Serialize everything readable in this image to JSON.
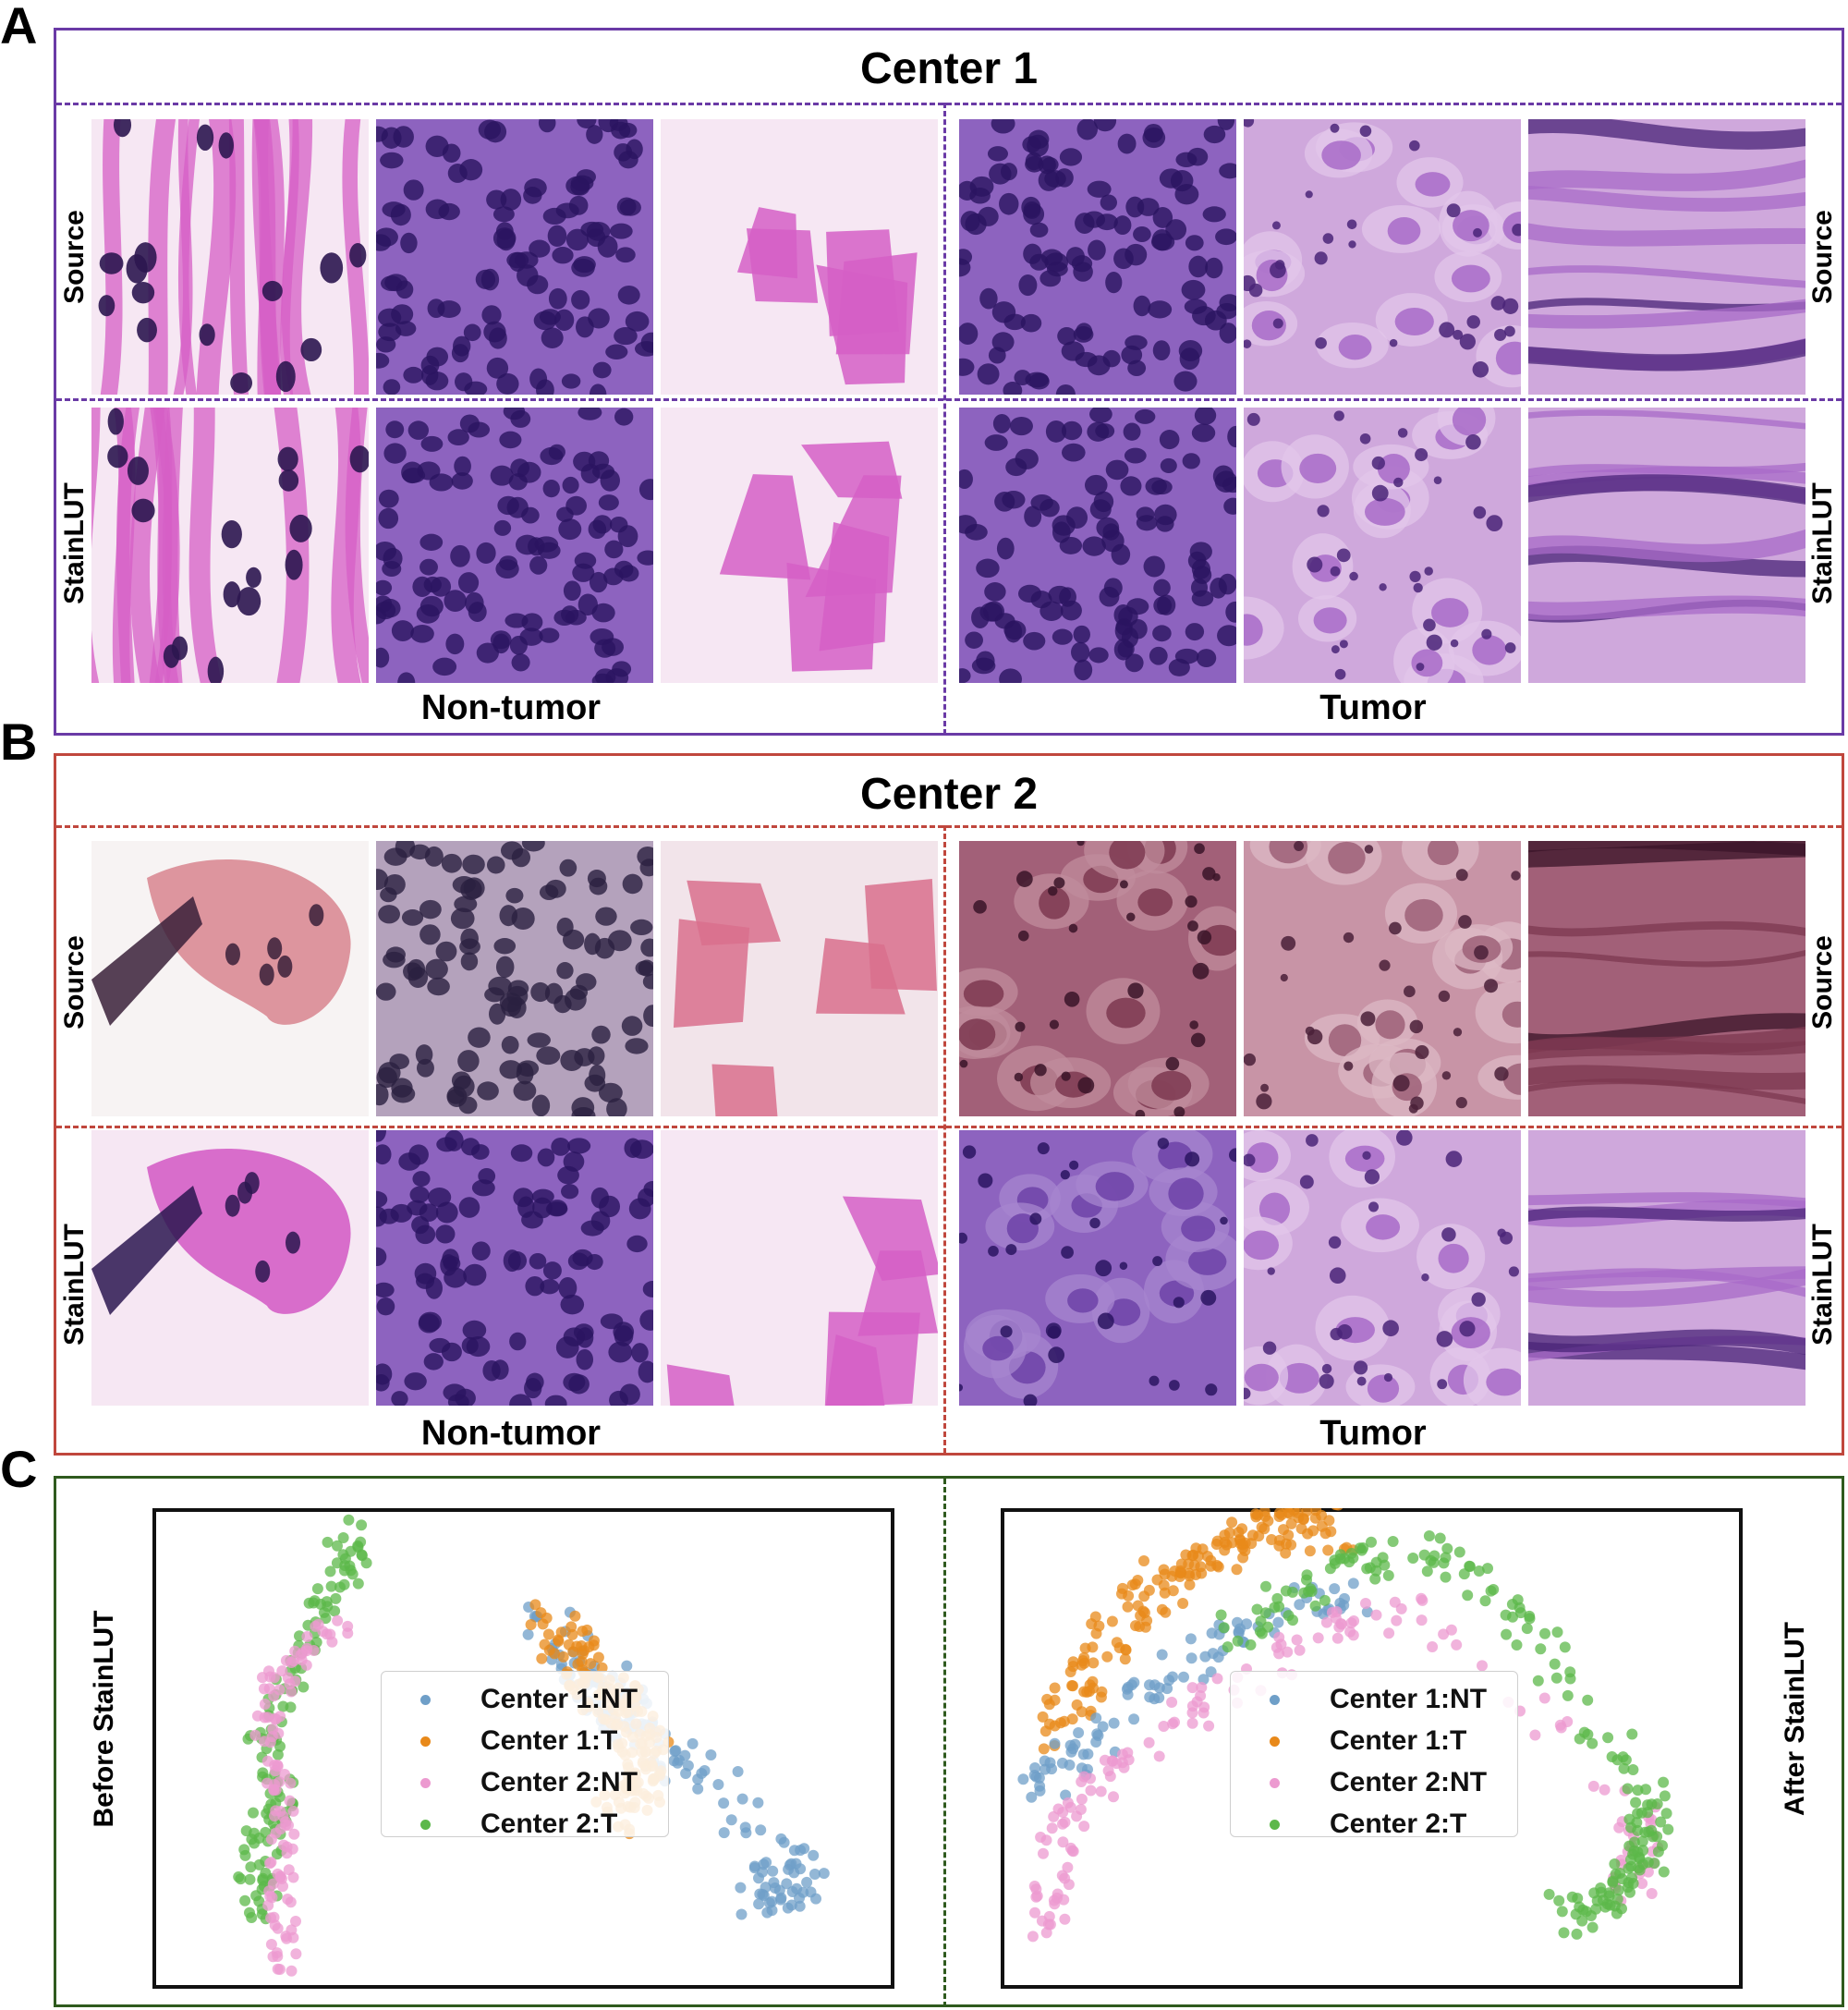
{
  "panels": [
    {
      "letter": "A",
      "title": "Center 1",
      "row_labels": [
        "Source",
        "StainLUT"
      ],
      "groups": [
        "Non-tumor",
        "Tumor"
      ],
      "border_color": "#6a3aa6",
      "tiles": [
        {
          "name": "c1-src-nt-1",
          "palette": "vivid-pink",
          "pattern": "stroma"
        },
        {
          "name": "c1-src-nt-2",
          "palette": "deep-purple",
          "pattern": "lymph"
        },
        {
          "name": "c1-src-nt-3",
          "palette": "vivid-pink",
          "pattern": "fragments"
        },
        {
          "name": "c1-src-t-1",
          "palette": "deep-purple",
          "pattern": "lymph"
        },
        {
          "name": "c1-src-t-2",
          "palette": "lilac",
          "pattern": "cells"
        },
        {
          "name": "c1-src-t-3",
          "palette": "lilac",
          "pattern": "fibers"
        },
        {
          "name": "c1-lut-nt-1",
          "palette": "vivid-pink",
          "pattern": "stroma"
        },
        {
          "name": "c1-lut-nt-2",
          "palette": "deep-purple",
          "pattern": "lymph"
        },
        {
          "name": "c1-lut-nt-3",
          "palette": "vivid-pink",
          "pattern": "fragments"
        },
        {
          "name": "c1-lut-t-1",
          "palette": "deep-purple",
          "pattern": "lymph"
        },
        {
          "name": "c1-lut-t-2",
          "palette": "lilac",
          "pattern": "cells"
        },
        {
          "name": "c1-lut-t-3",
          "palette": "lilac",
          "pattern": "fibers"
        }
      ]
    },
    {
      "letter": "B",
      "title": "Center 2",
      "row_labels": [
        "Source",
        "StainLUT"
      ],
      "groups": [
        "Non-tumor",
        "Tumor"
      ],
      "border_color": "#c0473d",
      "tiles": [
        {
          "name": "c2-src-nt-1",
          "palette": "salmon",
          "pattern": "blob"
        },
        {
          "name": "c2-src-nt-2",
          "palette": "grey-purple",
          "pattern": "lymph"
        },
        {
          "name": "c2-src-nt-3",
          "palette": "red-pink",
          "pattern": "fragments"
        },
        {
          "name": "c2-src-t-1",
          "palette": "dark-rose",
          "pattern": "cells"
        },
        {
          "name": "c2-src-t-2",
          "palette": "brown-rose",
          "pattern": "cells"
        },
        {
          "name": "c2-src-t-3",
          "palette": "dark-rose",
          "pattern": "fibers"
        },
        {
          "name": "c2-lut-nt-1",
          "palette": "vivid-pink",
          "pattern": "blob"
        },
        {
          "name": "c2-lut-nt-2",
          "palette": "deep-purple",
          "pattern": "lymph"
        },
        {
          "name": "c2-lut-nt-3",
          "palette": "vivid-pink",
          "pattern": "fragments"
        },
        {
          "name": "c2-lut-t-1",
          "palette": "deep-purple",
          "pattern": "cells"
        },
        {
          "name": "c2-lut-t-2",
          "palette": "lilac",
          "pattern": "cells"
        },
        {
          "name": "c2-lut-t-3",
          "palette": "lilac",
          "pattern": "fibers"
        }
      ]
    }
  ],
  "panel_c": {
    "letter": "C",
    "border_color": "#2f5a1e",
    "plots": [
      {
        "label": "Before StainLUT"
      },
      {
        "label": "After StainLUT"
      }
    ],
    "legend": [
      {
        "label": "Center 1:NT",
        "color": "#6f9fc8"
      },
      {
        "label": "Center 1:T",
        "color": "#e8891a"
      },
      {
        "label": "Center 2:NT",
        "color": "#ec9ad0"
      },
      {
        "label": "Center 2:T",
        "color": "#5cb84a"
      }
    ]
  }
}
